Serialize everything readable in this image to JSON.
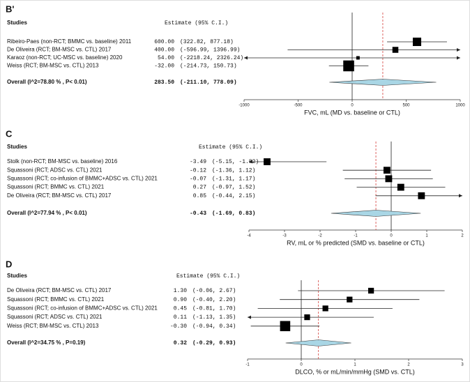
{
  "chart_data": [
    {
      "type": "forest",
      "panel_label": "B'",
      "column_headers": [
        "Studies",
        "Estimate (95% C.I.)"
      ],
      "studies": [
        "Ribeiro-Paes (non-RCT; BMMC vs. baseline) 2011",
        "De Oliveira (RCT; BM-MSC vs. CTL) 2017",
        "Karaoz (non-RCT; UC-MSC vs. baseline) 2020",
        "Weiss (RCT; BM-MSC vs. CTL) 2013"
      ],
      "values": [
        600,
        400,
        54,
        -32
      ],
      "lower": [
        322.82,
        -596.99,
        -2218.24,
        -214.73
      ],
      "upper": [
        877.18,
        1396.99,
        2326.24,
        150.73
      ],
      "weights": [
        30,
        15,
        5,
        50
      ],
      "value_labels": [
        "600.00",
        "400.00",
        "54.00",
        "-32.00"
      ],
      "ci_labels": [
        "(322.82, 877.18)",
        "(-596.99, 1396.99)",
        "(-2218.24, 2326.24)",
        "(-214.73, 150.73)"
      ],
      "overall": {
        "label": "Overall (I^2=78.80 % , P< 0.01)",
        "value": 283.5,
        "lower": -211.1,
        "upper": 778.09,
        "value_label": "283.50",
        "ci_label": "(-211.10, 778.09)"
      },
      "xlabel": "FVC, mL (MD vs. baseline or CTL)",
      "xlim": [
        -1000,
        1000
      ],
      "xticks": [
        -1000,
        -500,
        0,
        500,
        1000
      ],
      "reference_line": 0
    },
    {
      "type": "forest",
      "panel_label": "C",
      "column_headers": [
        "Studies",
        "Estimate (95% C.I.)"
      ],
      "studies": [
        "Stolk (non-RCT; BM-MSC vs. baseline) 2016",
        "Squassoni (RCT; ADSC vs. CTL) 2021",
        "Squassoni (RCT; co-infusion of BMMC+ADSC vs. CTL) 2021",
        "Squassoni (RCT; BMMC vs. CTL) 2021",
        "De Oliveira (RCT; BM-MSC vs. CTL) 2017"
      ],
      "values": [
        -3.49,
        -0.12,
        -0.07,
        0.27,
        0.85
      ],
      "lower": [
        -5.15,
        -1.36,
        -1.31,
        -0.97,
        -0.44
      ],
      "upper": [
        -1.82,
        1.12,
        1.17,
        1.52,
        2.15
      ],
      "weights": [
        20,
        20,
        20,
        20,
        20
      ],
      "value_labels": [
        "-3.49",
        "-0.12",
        "-0.07",
        "0.27",
        "0.85"
      ],
      "ci_labels": [
        "(-5.15, -1.82)",
        "(-1.36, 1.12)",
        "(-1.31, 1.17)",
        "(-0.97, 1.52)",
        "(-0.44, 2.15)"
      ],
      "overall": {
        "label": "Overall (I^2=77.94 % , P< 0.01)",
        "value": -0.43,
        "lower": -1.69,
        "upper": 0.83,
        "value_label": "-0.43",
        "ci_label": "(-1.69, 0.83)"
      },
      "xlabel": "RV, mL or % predicted (SMD vs. baseline or CTL)",
      "xlim": [
        -4,
        2
      ],
      "xticks": [
        -4,
        -3,
        -2,
        -1,
        0,
        1,
        2
      ],
      "reference_line": 0
    },
    {
      "type": "forest",
      "panel_label": "D",
      "column_headers": [
        "Studies",
        "Estimate (95% C.I.)"
      ],
      "studies": [
        "De Oliveira (RCT; BM-MSC vs. CTL) 2017",
        "Squassoni (RCT; BMMC vs. CTL) 2021",
        "Squassoni (RCT; co-infusion of BMMC+ADSC vs. CTL) 2021",
        "Squassoni (RCT; ADSC vs. CTL) 2021",
        "Weiss (RCT; BM-MSC vs. CTL) 2013"
      ],
      "values": [
        1.3,
        0.9,
        0.45,
        0.11,
        -0.3
      ],
      "lower": [
        -0.06,
        -0.4,
        -0.81,
        -1.13,
        -0.94
      ],
      "upper": [
        2.67,
        2.2,
        1.7,
        1.35,
        0.34
      ],
      "weights": [
        14,
        14,
        14,
        14,
        44
      ],
      "value_labels": [
        "1.30",
        "0.90",
        "0.45",
        "0.11",
        "-0.30"
      ],
      "ci_labels": [
        "(-0.06, 2.67)",
        "(-0.40, 2.20)",
        "(-0.81, 1.70)",
        "(-1.13, 1.35)",
        "(-0.94, 0.34)"
      ],
      "overall": {
        "label": "Overall (I^2=34.75 % , P=0.19)",
        "value": 0.32,
        "lower": -0.29,
        "upper": 0.93,
        "value_label": "0.32",
        "ci_label": "(-0.29, 0.93)"
      },
      "xlabel": "DLCO, % or mL/min/mmHg (SMD vs. CTL)",
      "xlim": [
        -1,
        3
      ],
      "xticks": [
        -1,
        0,
        1,
        2,
        3
      ],
      "reference_line": 0
    }
  ]
}
